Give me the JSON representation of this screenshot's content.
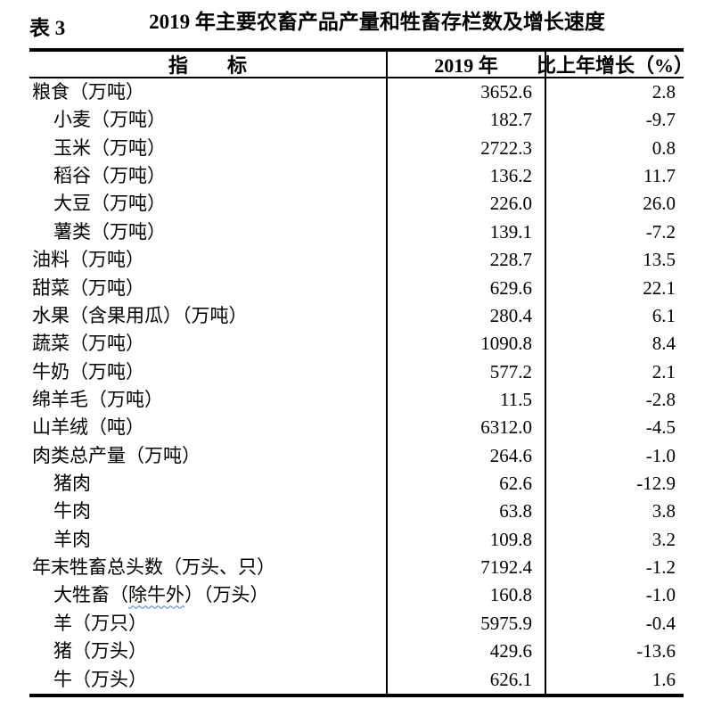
{
  "header": {
    "table_label": "表 3",
    "title": "2019 年主要农畜产品产量和牲畜存栏数及增长速度"
  },
  "table": {
    "columns": {
      "indicator": "指　　标",
      "year": "2019 年",
      "growth": "比上年增长（%）"
    },
    "rows": [
      {
        "indicator": "粮食（万吨）",
        "indent": false,
        "year": "3652.6",
        "growth": "2.8"
      },
      {
        "indicator": "小麦（万吨）",
        "indent": true,
        "year": "182.7",
        "growth": "-9.7"
      },
      {
        "indicator": "玉米（万吨）",
        "indent": true,
        "year": "2722.3",
        "growth": "0.8"
      },
      {
        "indicator": "稻谷（万吨）",
        "indent": true,
        "year": "136.2",
        "growth": "11.7"
      },
      {
        "indicator": "大豆（万吨）",
        "indent": true,
        "year": "226.0",
        "growth": "26.0"
      },
      {
        "indicator": "薯类（万吨）",
        "indent": true,
        "year": "139.1",
        "growth": "-7.2"
      },
      {
        "indicator": "油料（万吨）",
        "indent": false,
        "year": "228.7",
        "growth": "13.5"
      },
      {
        "indicator": "甜菜（万吨）",
        "indent": false,
        "year": "629.6",
        "growth": "22.1"
      },
      {
        "indicator": "水果（含果用瓜）（万吨）",
        "indent": false,
        "year": "280.4",
        "growth": "6.1"
      },
      {
        "indicator": "蔬菜（万吨）",
        "indent": false,
        "year": "1090.8",
        "growth": "8.4"
      },
      {
        "indicator": "牛奶（万吨）",
        "indent": false,
        "year": "577.2",
        "growth": "2.1"
      },
      {
        "indicator": "绵羊毛（万吨）",
        "indent": false,
        "year": "11.5",
        "growth": "-2.8"
      },
      {
        "indicator": "山羊绒（吨）",
        "indent": false,
        "year": "6312.0",
        "growth": "-4.5"
      },
      {
        "indicator": "肉类总产量（万吨）",
        "indent": false,
        "year": "264.6",
        "growth": "-1.0"
      },
      {
        "indicator": "猪肉",
        "indent": true,
        "year": "62.6",
        "growth": "-12.9"
      },
      {
        "indicator": "牛肉",
        "indent": true,
        "year": "63.8",
        "growth": "3.8"
      },
      {
        "indicator": "羊肉",
        "indent": true,
        "year": "109.8",
        "growth": "3.2"
      },
      {
        "indicator": "年末牲畜总头数（万头、只）",
        "indent": false,
        "year": "7192.4",
        "growth": "-1.2"
      },
      {
        "indicator_parts": {
          "prefix": "大牲畜（",
          "misspelled": "除牛外",
          "suffix": "）（万头）"
        },
        "indent": true,
        "year": "160.8",
        "growth": "-1.0"
      },
      {
        "indicator": "羊（万只）",
        "indent": true,
        "year": "5975.9",
        "growth": "-0.4"
      },
      {
        "indicator": "猪（万头）",
        "indent": true,
        "year": "429.6",
        "growth": "-13.6"
      },
      {
        "indicator": "牛（万头）",
        "indent": true,
        "year": "626.1",
        "growth": "1.6"
      }
    ]
  },
  "colors": {
    "text": "#000000",
    "border": "#000000",
    "background": "#ffffff",
    "spellcheck_underline": "#4576d8"
  }
}
